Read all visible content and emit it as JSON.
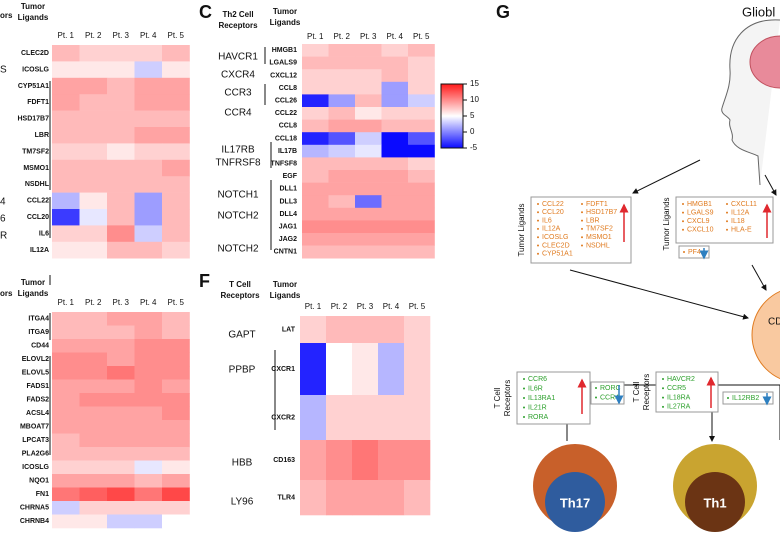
{
  "columns": [
    "Pt. 1",
    "Pt. 2",
    "Pt. 3",
    "Pt. 4",
    "Pt. 5"
  ],
  "color_scale": {
    "range": [
      -5,
      15
    ],
    "ticks": [
      15,
      10,
      5,
      0,
      -5
    ],
    "colors": [
      "#0a0aff",
      "#ffffff",
      "#ff1a1a"
    ]
  },
  "panel_top_left": {
    "cropped_header": "ors",
    "ligand_header": [
      "Tumor",
      "Ligands"
    ],
    "receptor_fragments": [
      {
        "text": "S",
        "color": "#222222"
      },
      {
        "text": "4",
        "color": "#2d7fc0"
      },
      {
        "text": "6",
        "color": "#e0282e"
      },
      {
        "text": "R",
        "color": "#e0282e"
      }
    ],
    "rows": [
      {
        "ligand": "CLEC2D",
        "values": [
          8,
          7,
          7,
          7,
          8
        ]
      },
      {
        "ligand": "ICOSLG",
        "values": [
          6,
          6,
          6,
          3,
          6
        ]
      },
      {
        "ligand": "CYP51A1",
        "values": [
          9,
          9,
          8,
          9,
          9
        ]
      },
      {
        "ligand": "FDFT1",
        "values": [
          9,
          8,
          8,
          9,
          9
        ]
      },
      {
        "ligand": "HSD17B7",
        "values": [
          8,
          8,
          8,
          8,
          8
        ]
      },
      {
        "ligand": "LBR",
        "values": [
          8,
          8,
          8,
          9,
          9
        ]
      },
      {
        "ligand": "TM7SF2",
        "values": [
          7,
          7,
          6,
          7,
          7
        ]
      },
      {
        "ligand": "MSMO1",
        "values": [
          8,
          8,
          8,
          8,
          9
        ]
      },
      {
        "ligand": "NSDHL",
        "values": [
          8,
          8,
          8,
          8,
          8
        ]
      },
      {
        "ligand": "CCL22",
        "values": [
          2,
          6,
          8,
          1,
          8
        ]
      },
      {
        "ligand": "CCL20",
        "values": [
          -3,
          4,
          8,
          1,
          8
        ]
      },
      {
        "ligand": "IL6",
        "values": [
          7,
          7,
          10,
          3,
          8
        ]
      },
      {
        "ligand": "IL12A",
        "values": [
          6,
          6,
          8,
          8,
          7
        ]
      }
    ]
  },
  "panel_bottom_left": {
    "cropped_header": "ors",
    "ligand_header": [
      "Tumor",
      "Ligands"
    ],
    "rows": [
      {
        "ligand": "ITGA4",
        "values": [
          8,
          8,
          9,
          9,
          8
        ]
      },
      {
        "ligand": "ITGA9",
        "values": [
          8,
          8,
          8,
          9,
          8
        ]
      },
      {
        "ligand": "CD44",
        "values": [
          9,
          9,
          9,
          10,
          10
        ]
      },
      {
        "ligand": "ELOVL2",
        "values": [
          10,
          10,
          9,
          10,
          10
        ]
      },
      {
        "ligand": "ELOVL5",
        "values": [
          10,
          10,
          11,
          10,
          10
        ]
      },
      {
        "ligand": "FADS1",
        "values": [
          9,
          9,
          9,
          10,
          9
        ]
      },
      {
        "ligand": "FADS2",
        "values": [
          9,
          10,
          10,
          10,
          10
        ]
      },
      {
        "ligand": "ACSL4",
        "values": [
          9,
          9,
          9,
          9,
          10
        ]
      },
      {
        "ligand": "MBOAT7",
        "values": [
          9,
          9,
          9,
          9,
          9
        ]
      },
      {
        "ligand": "LPCAT3",
        "values": [
          8,
          9,
          9,
          9,
          9
        ]
      },
      {
        "ligand": "PLA2G6",
        "values": [
          8,
          8,
          8,
          8,
          8
        ]
      },
      {
        "ligand": "ICOSLG",
        "values": [
          7,
          7,
          7,
          4,
          6
        ]
      },
      {
        "ligand": "NQO1",
        "values": [
          9,
          9,
          9,
          8,
          9
        ]
      },
      {
        "ligand": "FN1",
        "values": [
          11,
          12,
          13,
          11,
          13
        ]
      },
      {
        "ligand": "CHRNA5",
        "values": [
          3,
          7,
          7,
          7,
          7
        ]
      },
      {
        "ligand": "CHRNB4",
        "values": [
          6,
          6,
          3,
          3,
          5
        ]
      }
    ]
  },
  "panel_c": {
    "label": "C",
    "receptor_header": [
      "Th2 Cell",
      "Receptors"
    ],
    "ligand_header": [
      "Tumor",
      "Ligands"
    ],
    "receptors": [
      {
        "text": "HAVCR1",
        "color": "#e0282e"
      },
      {
        "text": "CXCR4",
        "color": "#e0282e"
      },
      {
        "text": "CCR3",
        "color": "#2d7fc0"
      },
      {
        "text": "CCR4",
        "color": "#2d7fc0"
      },
      {
        "text": "IL17RB",
        "color": "#e0282e"
      },
      {
        "text": "TNFRSF8",
        "color": "#e0282e"
      },
      {
        "text": "NOTCH1",
        "color": "#e0282e"
      },
      {
        "text": "NOTCH2",
        "color": "#e0282e"
      },
      {
        "text": "NOTCH2",
        "color": "#e0282e"
      }
    ],
    "rows": [
      {
        "ligand": "HMGB1",
        "values": [
          7,
          8,
          8,
          7,
          8
        ]
      },
      {
        "ligand": "LGALS9",
        "values": [
          8,
          8,
          8,
          8,
          7
        ]
      },
      {
        "ligand": "CXCL12",
        "values": [
          7,
          7,
          7,
          8,
          7
        ]
      },
      {
        "ligand": "CCL8",
        "values": [
          7,
          7,
          7,
          1,
          7
        ]
      },
      {
        "ligand": "CCL26",
        "values": [
          -4,
          1,
          8,
          1,
          3
        ]
      },
      {
        "ligand": "CCL22",
        "values": [
          7,
          8,
          6,
          7,
          7
        ]
      },
      {
        "ligand": "CCL8",
        "values": [
          8,
          9,
          9,
          8,
          8
        ]
      },
      {
        "ligand": "CCL18",
        "values": [
          -4,
          -2,
          3,
          -5,
          -2
        ]
      },
      {
        "ligand": "IL17B",
        "values": [
          2,
          3,
          4,
          -5,
          -5
        ]
      },
      {
        "ligand": "TNFSF8",
        "values": [
          8,
          8,
          8,
          8,
          7
        ]
      },
      {
        "ligand": "EGF",
        "values": [
          8,
          9,
          9,
          9,
          8
        ]
      },
      {
        "ligand": "DLL1",
        "values": [
          9,
          9,
          9,
          9,
          9
        ]
      },
      {
        "ligand": "DLL3",
        "values": [
          9,
          8,
          -1,
          9,
          9
        ]
      },
      {
        "ligand": "DLL4",
        "values": [
          9,
          9,
          9,
          9,
          9
        ]
      },
      {
        "ligand": "JAG1",
        "values": [
          10,
          10,
          10,
          10,
          10
        ]
      },
      {
        "ligand": "JAG2",
        "values": [
          9,
          9,
          9,
          9,
          9
        ]
      },
      {
        "ligand": "CNTN1",
        "values": [
          8,
          8,
          8,
          8,
          8
        ]
      }
    ]
  },
  "panel_f": {
    "label": "F",
    "receptor_header": [
      "T Cell",
      "Receptors"
    ],
    "ligand_header": [
      "Tumor",
      "Ligands"
    ],
    "receptors": [
      {
        "text": "GAPT",
        "color": "#2d7fc0"
      },
      {
        "text": "PPBP",
        "color": "#2d7fc0"
      },
      {
        "text": "HBB",
        "color": "#2d7fc0"
      },
      {
        "text": "LY96",
        "color": "#2d7fc0"
      }
    ],
    "rows": [
      {
        "ligand": "LAT",
        "values": [
          7,
          8,
          8,
          8,
          7
        ]
      },
      {
        "ligand": "CXCR1",
        "values": [
          -4,
          5,
          6,
          2,
          7
        ]
      },
      {
        "ligand": "CXCR2",
        "values": [
          2,
          7,
          7,
          7,
          7
        ]
      },
      {
        "ligand": "CD163",
        "values": [
          9,
          10,
          11,
          10,
          10
        ]
      },
      {
        "ligand": "TLR4",
        "values": [
          8,
          9,
          9,
          9,
          8
        ]
      }
    ]
  },
  "panel_g": {
    "label": "G",
    "title_fragment": "Gliobl",
    "ligand_axis": "Tumor Ligands",
    "receptor_axis": [
      "T Cell",
      "Receptors"
    ],
    "ligand_box_1": {
      "col1": [
        "CCL22",
        "CCL20",
        "IL6",
        "IL12A",
        "ICOSLG",
        "CLEC2D",
        "CYP51A1"
      ],
      "col2": [
        "FDFT1",
        "HSD17B7",
        "LBR",
        "TM7SF2",
        "MSMO1",
        "NSDHL"
      ]
    },
    "ligand_box_2": {
      "col1": [
        "HMGB1",
        "LGALS9",
        "CXCL9",
        "CXCL10"
      ],
      "col2": [
        "CXCL11",
        "IL12A",
        "IL18",
        "HLA-E"
      ],
      "down": [
        "PF4"
      ]
    },
    "receptor_box_1": {
      "up": [
        "CCR6",
        "IL6R",
        "IL13RA1",
        "IL21R",
        "RORA"
      ],
      "down": [
        "RORC",
        "CCR4"
      ]
    },
    "receptor_box_2": {
      "up": [
        "HAVCR2",
        "CCR5",
        "IL18RA",
        "IL27RA"
      ],
      "down": [
        "IL12RB2"
      ]
    },
    "center_fragment": "CD",
    "subsets": [
      "Th17",
      "Th1"
    ]
  }
}
